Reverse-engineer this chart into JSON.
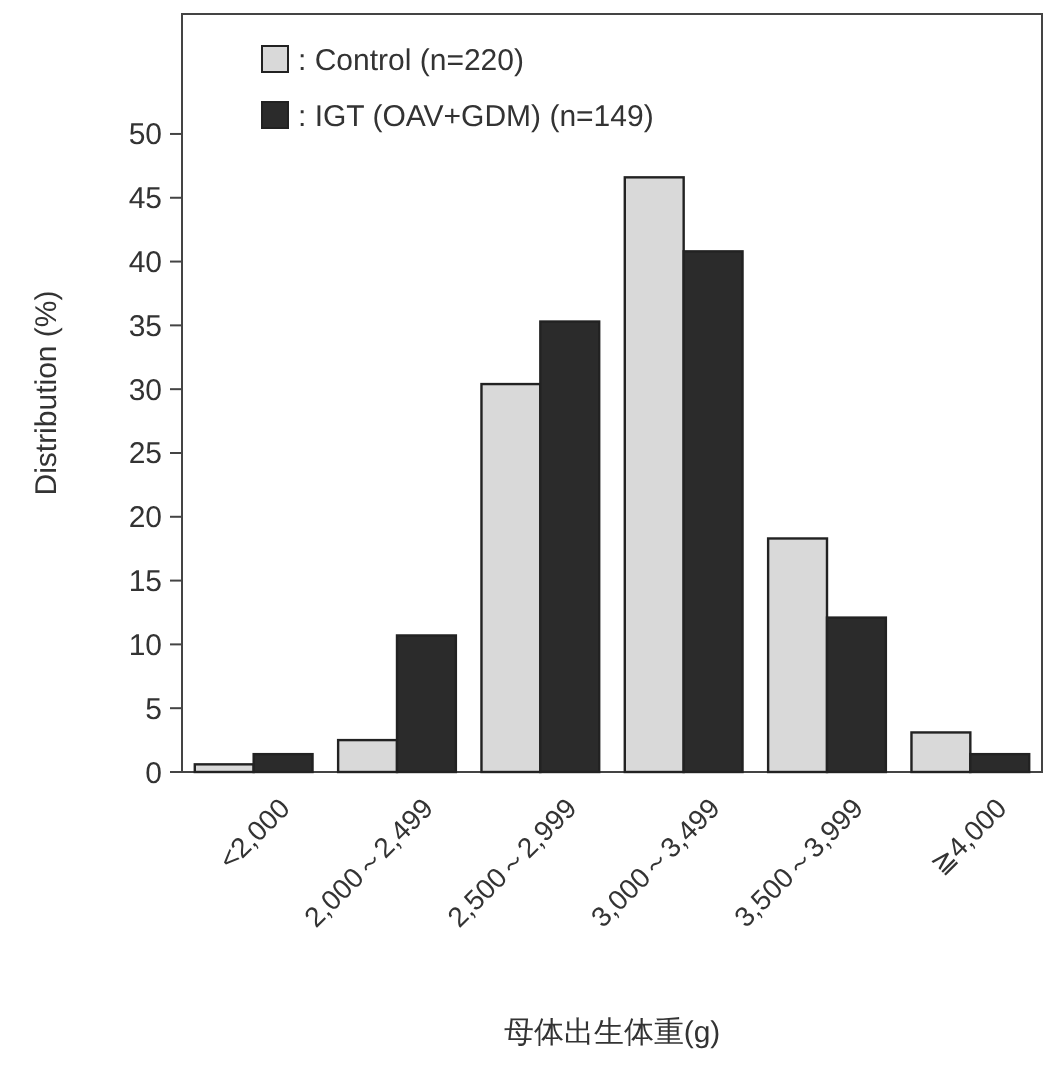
{
  "chart_data": {
    "type": "bar",
    "xlabel": "母体出生体重(g)",
    "ylabel": "Distribution (%)",
    "categories": [
      "<2,000",
      "2,000～2,499",
      "2,500～2,999",
      "3,000～3,499",
      "3,500～3,999",
      "≧4,000"
    ],
    "series": [
      {
        "name": ": Control (n=220)",
        "color": "#d9d9d9",
        "values": [
          0.6,
          2.5,
          30.4,
          46.6,
          18.3,
          3.1
        ]
      },
      {
        "name": ": IGT (OAV+GDM) (n=149)",
        "color": "#2b2b2b",
        "values": [
          1.4,
          10.7,
          35.3,
          40.8,
          12.1,
          1.4
        ]
      }
    ],
    "ylim": [
      0,
      59.4
    ],
    "yticks": [
      0,
      5,
      10,
      15,
      20,
      25,
      30,
      35,
      40,
      45,
      50
    ],
    "grid": false,
    "legend": "top left"
  }
}
